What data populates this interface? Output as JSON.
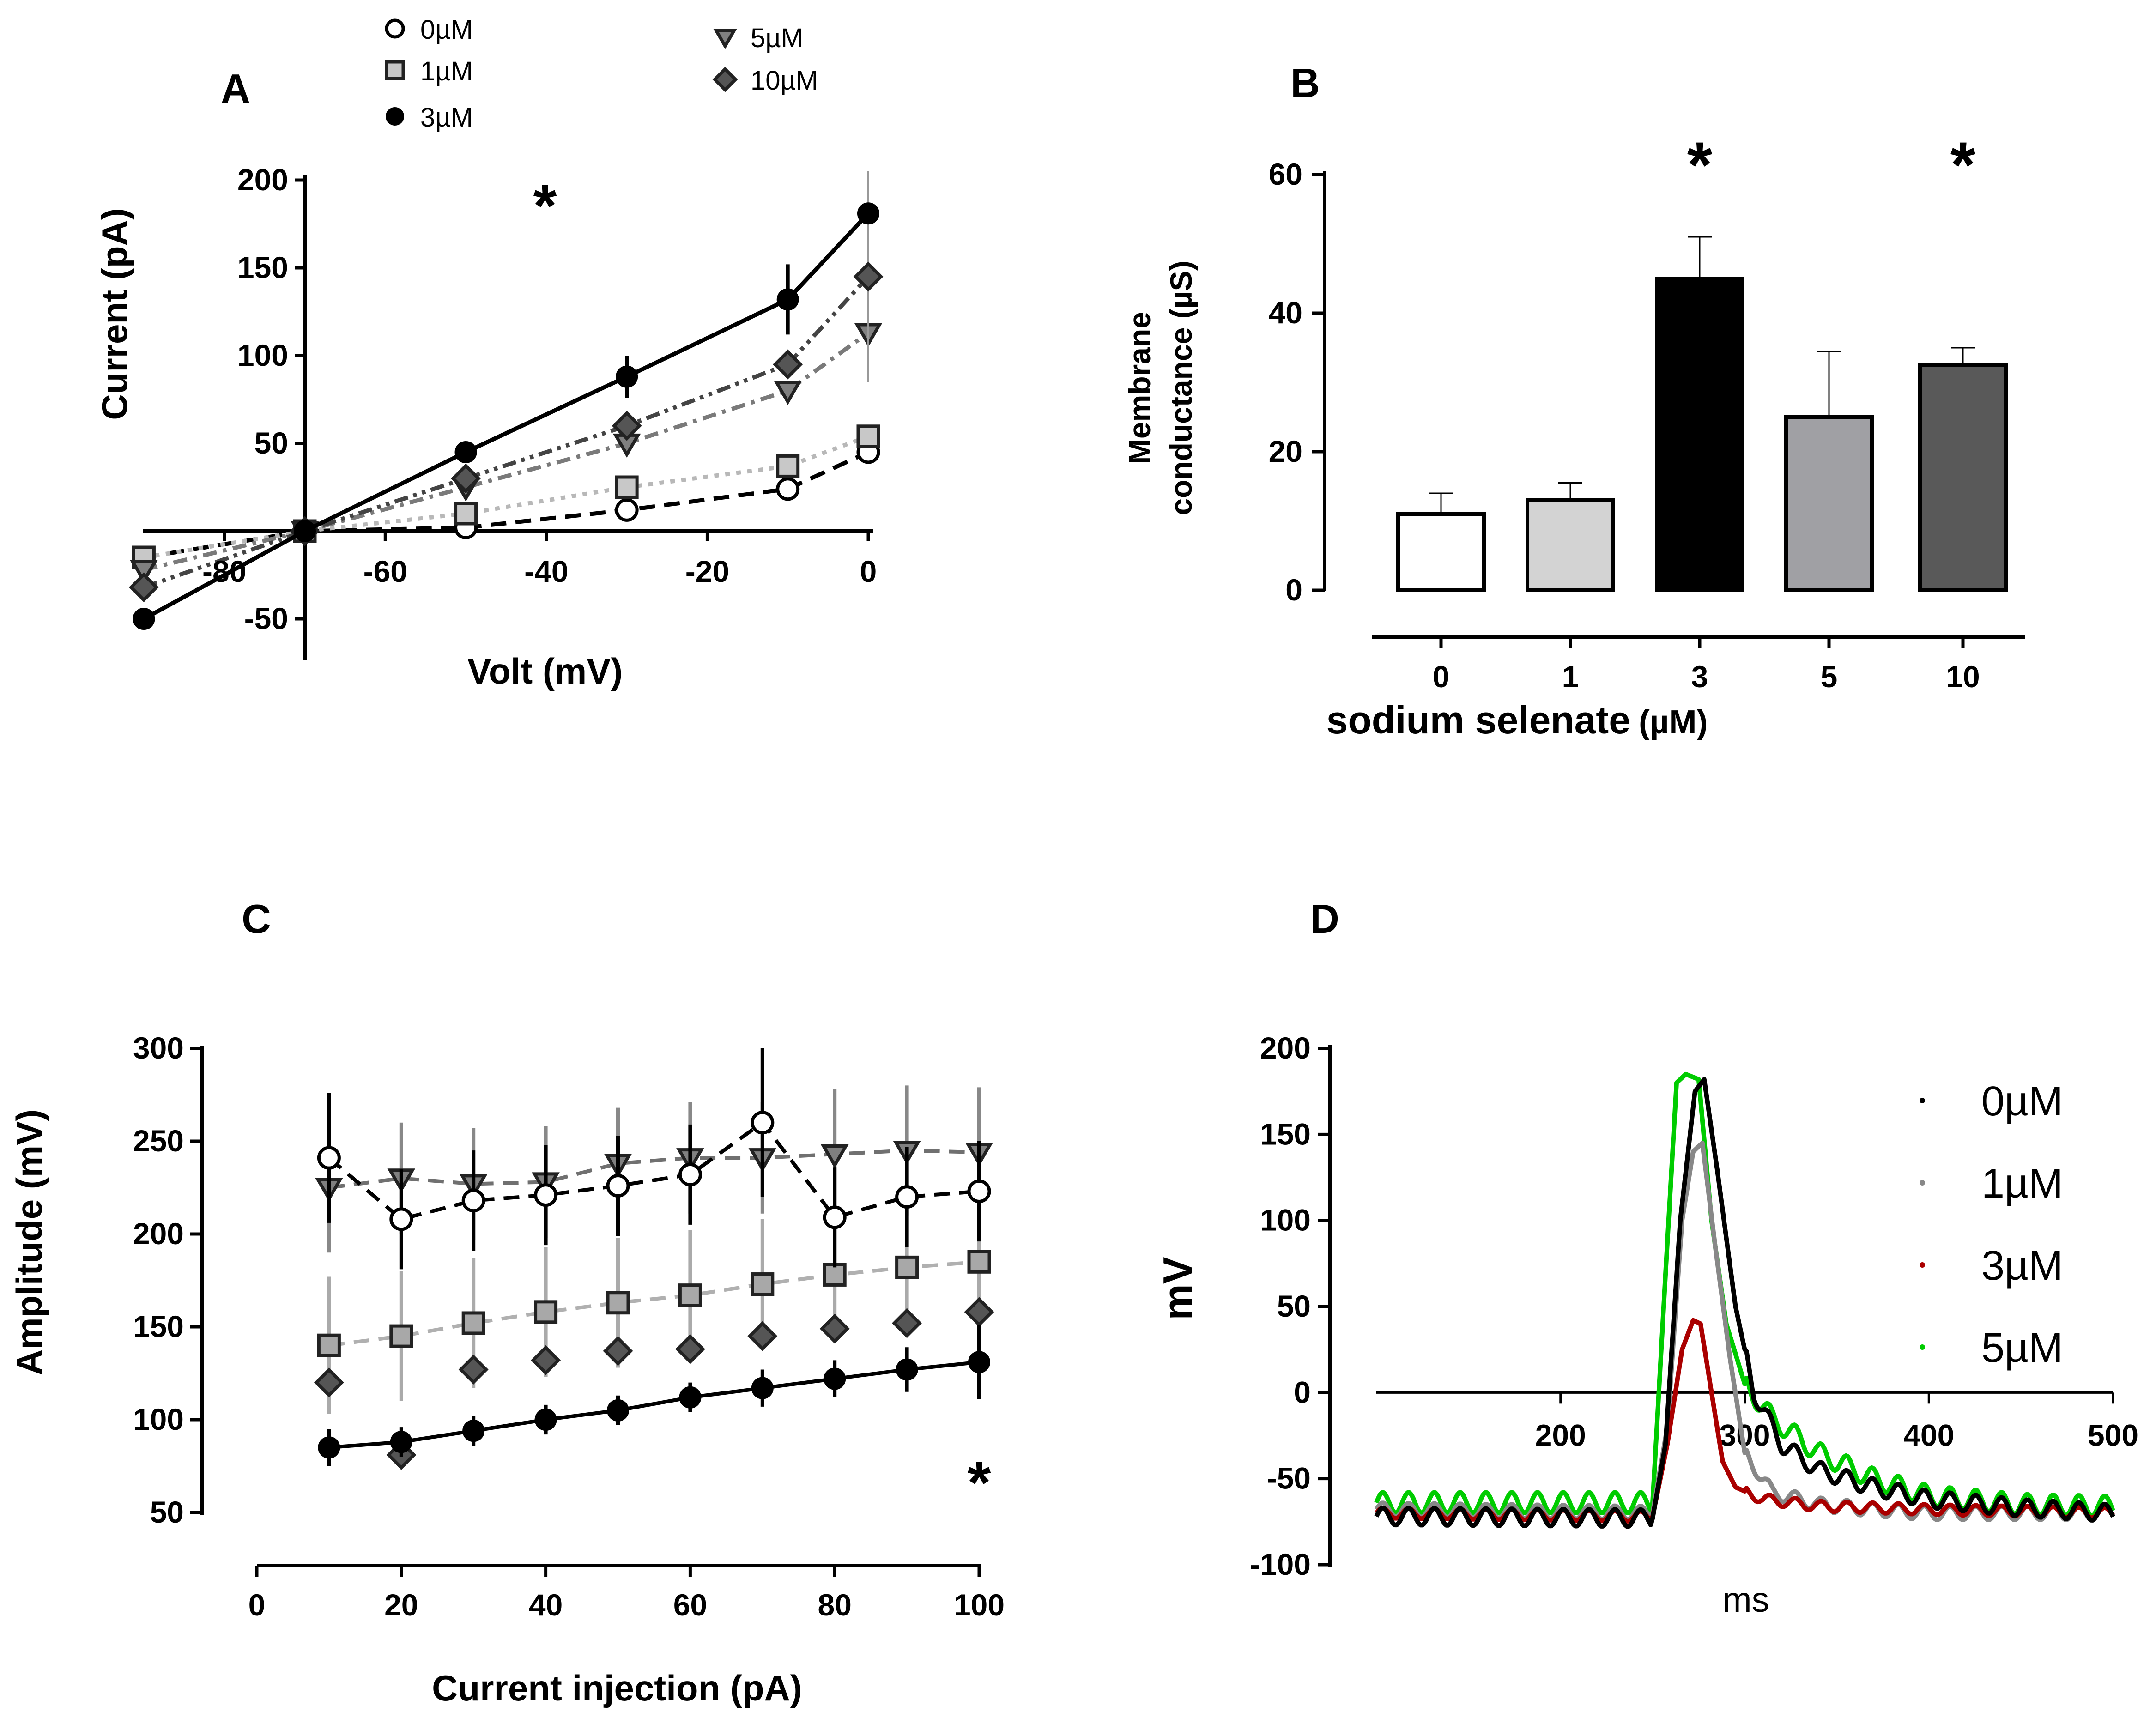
{
  "chart_data": [
    {
      "panel": "A",
      "type": "line",
      "title": "",
      "xlabel": "Volt (mV)",
      "ylabel": "Current (pA)",
      "xlim": [
        -90,
        0
      ],
      "ylim": [
        -70,
        200
      ],
      "xticks": [
        -80,
        -60,
        -40,
        -20,
        0
      ],
      "yticks": [
        -50,
        50,
        100,
        150,
        200
      ],
      "x_tick_labels": [
        "-80",
        "-60",
        "-40",
        "-20",
        "0"
      ],
      "y_tick_labels": [
        "-50",
        "50",
        "100",
        "150",
        "200"
      ],
      "annotation": "*",
      "legend": {
        "placement": "top",
        "entries": [
          "0µM",
          "1µM",
          "3µM",
          "5µM",
          "10µM"
        ]
      },
      "x": [
        -90,
        -70,
        -50,
        -30,
        -10,
        0
      ],
      "series": [
        {
          "name": "0µM",
          "marker": "circle-open",
          "color": "#000000",
          "line": "dashed",
          "values": [
            -15,
            0,
            2,
            12,
            24,
            45
          ],
          "err": [
            0,
            0,
            0,
            0,
            0,
            0
          ]
        },
        {
          "name": "1µM",
          "marker": "square",
          "color": "#c8c8c8",
          "line": "dotted",
          "values": [
            -15,
            0,
            10,
            25,
            37,
            54
          ],
          "err": [
            0,
            0,
            0,
            0,
            0,
            0
          ]
        },
        {
          "name": "3µM",
          "marker": "circle-filled",
          "color": "#000000",
          "line": "solid",
          "values": [
            -50,
            0,
            45,
            88,
            132,
            181
          ],
          "err": [
            0,
            0,
            5,
            12,
            20,
            0
          ]
        },
        {
          "name": "5µM",
          "marker": "triangle-down",
          "color": "#808080",
          "line": "dashdot",
          "values": [
            -22,
            0,
            25,
            50,
            80,
            113
          ],
          "err": [
            0,
            0,
            0,
            0,
            0,
            0
          ]
        },
        {
          "name": "10µM",
          "marker": "diamond",
          "color": "#555555",
          "line": "dashdotdot",
          "values": [
            -32,
            0,
            30,
            60,
            95,
            145
          ],
          "err": [
            0,
            0,
            0,
            0,
            0,
            60
          ]
        }
      ]
    },
    {
      "panel": "B",
      "type": "bar",
      "title": "",
      "xlabel": "sodium selenate (µM)",
      "ylabel": "Membrane conductance (µS)",
      "ylim": [
        0,
        60
      ],
      "yticks": [
        0,
        20,
        40,
        60
      ],
      "y_tick_labels": [
        "0",
        "20",
        "40",
        "60"
      ],
      "categories": [
        "0",
        "1",
        "3",
        "5",
        "10"
      ],
      "values": [
        11,
        13,
        45,
        25,
        32.5
      ],
      "err": [
        3,
        2.5,
        6,
        9.5,
        2.5
      ],
      "colors": [
        "#ffffff",
        "#d3d3d3",
        "#000000",
        "#a0a0a4",
        "#595959"
      ],
      "significance": [
        "",
        "",
        "*",
        "",
        "*"
      ]
    },
    {
      "panel": "C",
      "type": "line",
      "title": "",
      "xlabel": "Current injection (pA)",
      "ylabel": "Amplitude (mV)",
      "xlim": [
        0,
        100
      ],
      "ylim": [
        50,
        300
      ],
      "xticks": [
        0,
        20,
        40,
        60,
        80,
        100
      ],
      "yticks": [
        50,
        100,
        150,
        200,
        250,
        300
      ],
      "x_tick_labels": [
        "0",
        "20",
        "40",
        "60",
        "80",
        "100"
      ],
      "y_tick_labels": [
        "50",
        "100",
        "150",
        "200",
        "250",
        "300"
      ],
      "annotation": "*",
      "x": [
        10,
        20,
        30,
        40,
        50,
        60,
        70,
        80,
        90,
        100
      ],
      "series": [
        {
          "name": "0µM",
          "marker": "circle-open",
          "color": "#000000",
          "line": "dashed",
          "values": [
            241,
            208,
            218,
            221,
            226,
            232,
            260,
            209,
            220,
            223
          ],
          "err": [
            35,
            27,
            27,
            27,
            27,
            27,
            40,
            27,
            27,
            27
          ]
        },
        {
          "name": "1µM",
          "marker": "square",
          "color": "#a8a8a8",
          "line": "dashed",
          "values": [
            140,
            145,
            152,
            158,
            163,
            167,
            173,
            178,
            182,
            185
          ],
          "err": [
            37,
            35,
            35,
            35,
            35,
            35,
            35,
            35,
            35,
            35
          ]
        },
        {
          "name": "3µM",
          "marker": "circle-filled",
          "color": "#000000",
          "line": "solid",
          "values": [
            85,
            88,
            94,
            100,
            105,
            112,
            117,
            122,
            127,
            131
          ],
          "err": [
            10,
            8,
            8,
            8,
            8,
            8,
            10,
            10,
            12,
            20
          ]
        },
        {
          "name": "5µM",
          "marker": "triangle-down",
          "color": "#808080",
          "line": "dashed",
          "values": [
            225,
            230,
            227,
            228,
            238,
            241,
            241,
            243,
            245,
            244
          ],
          "err": [
            35,
            30,
            30,
            30,
            30,
            30,
            30,
            35,
            35,
            35
          ]
        },
        {
          "name": "10µM",
          "marker": "diamond",
          "color": "#555555",
          "line": "none",
          "values": [
            120,
            81,
            127,
            132,
            137,
            138,
            145,
            149,
            152,
            158
          ],
          "err": [
            0,
            0,
            0,
            0,
            0,
            0,
            0,
            0,
            0,
            0
          ]
        }
      ]
    },
    {
      "panel": "D",
      "type": "line",
      "title": "",
      "xlabel": "ms",
      "ylabel": "mV",
      "xlim": [
        100,
        500
      ],
      "ylim": [
        -100,
        200
      ],
      "xticks": [
        200,
        300,
        400,
        500
      ],
      "yticks": [
        -100,
        -50,
        0,
        50,
        100,
        150,
        200
      ],
      "x_tick_labels": [
        "200",
        "300",
        "400",
        "500"
      ],
      "y_tick_labels": [
        "-100",
        "-50",
        "0",
        "50",
        "100",
        "150",
        "200"
      ],
      "legend": {
        "placement": "right",
        "entries": [
          "0µM",
          "1µM",
          "3µM",
          "5µM"
        ]
      },
      "series": [
        {
          "name": "0µM",
          "color": "#000000",
          "x": [
            100,
            250,
            257,
            265,
            273,
            278,
            285,
            295,
            305,
            320,
            340,
            370,
            400,
            450,
            500
          ],
          "values": [
            -72,
            -73,
            -30,
            100,
            175,
            182,
            130,
            50,
            0,
            -30,
            -45,
            -55,
            -62,
            -67,
            -70
          ],
          "ripple": 5
        },
        {
          "name": "1µM",
          "color": "#888888",
          "x": [
            100,
            250,
            258,
            266,
            272,
            277,
            284,
            292,
            300,
            315,
            340,
            370,
            400,
            450,
            500
          ],
          "values": [
            -68,
            -70,
            -20,
            100,
            140,
            145,
            85,
            20,
            -35,
            -58,
            -65,
            -68,
            -70,
            -70,
            -70
          ],
          "ripple": 4
        },
        {
          "name": "3µM",
          "color": "#aa0000",
          "x": [
            100,
            250,
            258,
            266,
            272,
            276,
            282,
            288,
            295,
            310,
            340,
            400,
            450,
            500
          ],
          "values": [
            -70,
            -72,
            -30,
            25,
            42,
            40,
            0,
            -40,
            -55,
            -62,
            -66,
            -68,
            -69,
            -70
          ],
          "ripple": 3
        },
        {
          "name": "5µM",
          "color": "#00cc00",
          "x": [
            100,
            250,
            256,
            263,
            268,
            275,
            282,
            290,
            300,
            315,
            340,
            370,
            400,
            450,
            500
          ],
          "values": [
            -64,
            -64,
            50,
            180,
            185,
            182,
            100,
            40,
            5,
            -15,
            -35,
            -50,
            -60,
            -65,
            -66
          ],
          "ripple": 6
        }
      ]
    }
  ],
  "panels": {
    "A": "A",
    "B": "B",
    "C": "C",
    "D": "D"
  },
  "axes": {
    "a_xlabel": "Volt (mV)",
    "a_ylabel": "Current (pA)",
    "b_xlabel_main": "sodium selenate",
    "b_xlabel_unit": "(µM)",
    "b_ylabel_line1": "Membrane",
    "b_ylabel_line2": "conductance (µS)",
    "c_xlabel": "Current injection (pA)",
    "c_ylabel": "Amplitude (mV)",
    "d_xlabel": "ms",
    "d_ylabel": "mV"
  },
  "annotations": {
    "a_star": "*",
    "c_star": "*"
  }
}
